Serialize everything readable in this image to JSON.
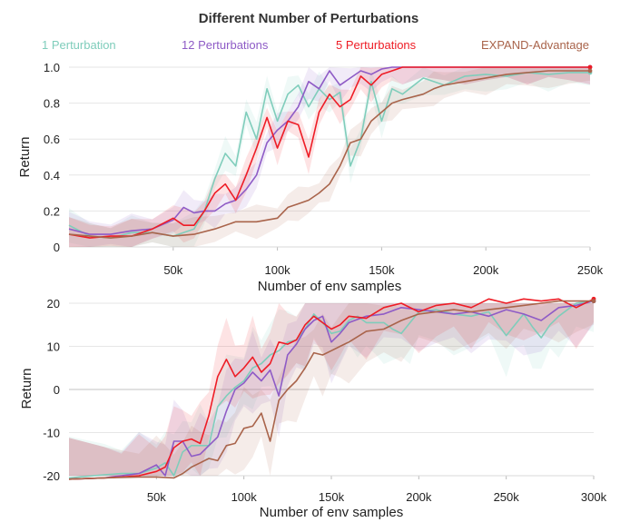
{
  "title": "Different Number of Perturbations",
  "colors": {
    "one": "#7fcdbb",
    "twelve": "#8e5bc6",
    "five": "#ee1c25",
    "expand": "#a9644b"
  },
  "legend": [
    {
      "name": "1 Perturbation",
      "color": "#7fcdbb"
    },
    {
      "name": "12 Perturbations",
      "color": "#8e5bc6"
    },
    {
      "name": "5 Perturbations",
      "color": "#ee1c25"
    },
    {
      "name": "EXPAND-Advantage",
      "color": "#a9644b"
    }
  ],
  "chart_data": [
    {
      "type": "line",
      "xlabel": "Number of env samples",
      "ylabel": "Return",
      "xlim": [
        0,
        250000
      ],
      "ylim": [
        0,
        1.0
      ],
      "xticks": [
        50000,
        100000,
        150000,
        200000,
        250000
      ],
      "xtick_labels": [
        "50k",
        "100k",
        "150k",
        "200k",
        "250k"
      ],
      "yticks": [
        0,
        0.2,
        0.4,
        0.6,
        0.8,
        1.0
      ],
      "ytick_labels": [
        "0",
        "0.2",
        "0.4",
        "0.6",
        "0.8",
        "1.0"
      ],
      "series": [
        {
          "name": "1 Perturbation",
          "key": "one",
          "x": [
            0,
            10000,
            20000,
            30000,
            40000,
            50000,
            60000,
            65000,
            70000,
            75000,
            80000,
            85000,
            90000,
            95000,
            100000,
            105000,
            110000,
            115000,
            120000,
            125000,
            130000,
            135000,
            140000,
            145000,
            150000,
            155000,
            160000,
            170000,
            180000,
            190000,
            200000,
            210000,
            220000,
            230000,
            240000,
            250000
          ],
          "y": [
            0.12,
            0.06,
            0.05,
            0.08,
            0.08,
            0.06,
            0.1,
            0.2,
            0.38,
            0.52,
            0.45,
            0.75,
            0.6,
            0.88,
            0.7,
            0.85,
            0.9,
            0.78,
            0.88,
            0.82,
            0.86,
            0.45,
            0.6,
            0.92,
            0.7,
            0.88,
            0.85,
            0.94,
            0.9,
            0.95,
            0.96,
            0.95,
            0.97,
            0.96,
            0.97,
            0.97
          ]
        },
        {
          "name": "12 Perturbations",
          "key": "twelve",
          "x": [
            0,
            10000,
            20000,
            30000,
            40000,
            50000,
            55000,
            60000,
            65000,
            70000,
            75000,
            80000,
            85000,
            90000,
            95000,
            100000,
            105000,
            110000,
            115000,
            120000,
            125000,
            130000,
            135000,
            140000,
            145000,
            150000,
            155000,
            160000,
            170000,
            180000,
            190000,
            200000,
            210000,
            220000,
            230000,
            240000,
            250000
          ],
          "y": [
            0.1,
            0.07,
            0.07,
            0.09,
            0.1,
            0.15,
            0.22,
            0.19,
            0.2,
            0.2,
            0.24,
            0.26,
            0.32,
            0.4,
            0.58,
            0.65,
            0.7,
            0.78,
            0.92,
            0.88,
            0.98,
            0.9,
            0.94,
            0.98,
            0.96,
            0.99,
            1.0,
            1.0,
            1.0,
            1.0,
            1.0,
            1.0,
            1.0,
            1.0,
            1.0,
            1.0,
            1.0
          ]
        },
        {
          "name": "5 Perturbations",
          "key": "five",
          "x": [
            0,
            10000,
            20000,
            30000,
            40000,
            50000,
            55000,
            60000,
            65000,
            70000,
            75000,
            80000,
            85000,
            90000,
            95000,
            100000,
            105000,
            110000,
            115000,
            120000,
            125000,
            130000,
            135000,
            140000,
            145000,
            150000,
            155000,
            160000,
            170000,
            180000,
            190000,
            200000,
            210000,
            220000,
            230000,
            240000,
            250000
          ],
          "y": [
            0.07,
            0.05,
            0.06,
            0.06,
            0.1,
            0.16,
            0.12,
            0.12,
            0.2,
            0.3,
            0.35,
            0.26,
            0.4,
            0.55,
            0.72,
            0.55,
            0.7,
            0.68,
            0.5,
            0.75,
            0.85,
            0.78,
            0.82,
            0.95,
            0.9,
            0.96,
            0.98,
            1.0,
            1.0,
            1.0,
            1.0,
            1.0,
            1.0,
            1.0,
            1.0,
            1.0,
            1.0
          ]
        },
        {
          "name": "EXPAND-Advantage",
          "key": "expand",
          "x": [
            0,
            10000,
            20000,
            30000,
            40000,
            50000,
            60000,
            70000,
            80000,
            90000,
            100000,
            105000,
            110000,
            115000,
            120000,
            125000,
            130000,
            135000,
            140000,
            145000,
            150000,
            155000,
            160000,
            170000,
            175000,
            180000,
            190000,
            200000,
            210000,
            220000,
            230000,
            240000,
            250000
          ],
          "y": [
            0.07,
            0.06,
            0.05,
            0.06,
            0.08,
            0.06,
            0.07,
            0.1,
            0.14,
            0.14,
            0.16,
            0.22,
            0.24,
            0.26,
            0.3,
            0.35,
            0.45,
            0.58,
            0.6,
            0.7,
            0.75,
            0.8,
            0.82,
            0.85,
            0.88,
            0.9,
            0.92,
            0.94,
            0.96,
            0.97,
            0.98,
            0.98,
            0.98
          ]
        }
      ]
    },
    {
      "type": "line",
      "xlabel": "Number of env samples",
      "ylabel": "Return",
      "xlim": [
        0,
        300000
      ],
      "ylim": [
        -20,
        20
      ],
      "xticks": [
        50000,
        100000,
        150000,
        200000,
        250000,
        300000
      ],
      "xtick_labels": [
        "50k",
        "100k",
        "150k",
        "200k",
        "250k",
        "300k"
      ],
      "yticks": [
        -20,
        -10,
        0,
        10,
        20
      ],
      "ytick_labels": [
        "-20",
        "-10",
        "0",
        "10",
        "20"
      ],
      "series": [
        {
          "name": "1 Perturbation",
          "key": "one",
          "x": [
            0,
            20000,
            30000,
            40000,
            50000,
            55000,
            60000,
            65000,
            70000,
            75000,
            80000,
            85000,
            90000,
            95000,
            100000,
            105000,
            110000,
            115000,
            120000,
            125000,
            130000,
            135000,
            140000,
            145000,
            150000,
            155000,
            160000,
            165000,
            170000,
            175000,
            180000,
            185000,
            190000,
            195000,
            200000,
            210000,
            220000,
            230000,
            240000,
            250000,
            255000,
            260000,
            265000,
            270000,
            275000,
            280000,
            290000,
            300000
          ],
          "y": [
            -20.5,
            -19.8,
            -19.5,
            -19.5,
            -18.2,
            -17.0,
            -20.0,
            -14.5,
            -13.0,
            -13.0,
            -13.0,
            -4.0,
            -1.5,
            0.5,
            2.0,
            5.0,
            6.0,
            8.0,
            9.0,
            11.0,
            11.5,
            14.0,
            17.5,
            15.5,
            13.0,
            13.5,
            16.0,
            17.0,
            15.5,
            15.5,
            15.5,
            14.0,
            13.0,
            15.5,
            18.0,
            18.5,
            17.5,
            17.0,
            18.0,
            12.5,
            15.0,
            17.5,
            14.5,
            12.0,
            15.0,
            17.0,
            20.0,
            20.5
          ]
        },
        {
          "name": "12 Perturbations",
          "key": "twelve",
          "x": [
            0,
            20000,
            30000,
            40000,
            50000,
            55000,
            60000,
            65000,
            70000,
            75000,
            80000,
            85000,
            90000,
            95000,
            100000,
            105000,
            110000,
            115000,
            120000,
            125000,
            130000,
            135000,
            140000,
            145000,
            150000,
            155000,
            160000,
            170000,
            180000,
            190000,
            200000,
            210000,
            220000,
            230000,
            240000,
            250000,
            260000,
            270000,
            280000,
            290000,
            300000
          ],
          "y": [
            -20.8,
            -20.5,
            -20.0,
            -19.5,
            -17.5,
            -20.0,
            -12.0,
            -12.0,
            -15.5,
            -15.0,
            -13.0,
            -11.0,
            -5.0,
            0.0,
            1.5,
            4.0,
            2.0,
            4.5,
            -1.5,
            8.0,
            10.5,
            14.0,
            16.0,
            17.0,
            11.0,
            13.0,
            15.5,
            17.0,
            17.5,
            19.0,
            18.5,
            18.0,
            17.5,
            18.0,
            17.0,
            18.5,
            17.5,
            16.0,
            19.0,
            19.5,
            20.5
          ]
        },
        {
          "name": "5 Perturbations",
          "key": "five",
          "x": [
            0,
            20000,
            30000,
            40000,
            50000,
            55000,
            60000,
            65000,
            70000,
            75000,
            80000,
            85000,
            90000,
            95000,
            100000,
            105000,
            110000,
            115000,
            120000,
            125000,
            130000,
            135000,
            140000,
            145000,
            150000,
            155000,
            160000,
            170000,
            180000,
            190000,
            200000,
            210000,
            220000,
            230000,
            240000,
            250000,
            260000,
            270000,
            280000,
            290000,
            300000
          ],
          "y": [
            -20.8,
            -20.5,
            -20.3,
            -20.0,
            -19.0,
            -18.0,
            -13.5,
            -12.0,
            -11.5,
            -12.5,
            -6.0,
            3.0,
            7.0,
            3.0,
            5.0,
            7.5,
            4.0,
            6.0,
            11.0,
            10.5,
            11.5,
            15.0,
            17.0,
            15.5,
            14.0,
            15.0,
            17.0,
            16.5,
            19.0,
            20.0,
            18.0,
            19.5,
            20.0,
            19.0,
            21.0,
            20.0,
            21.0,
            20.5,
            21.0,
            19.0,
            21.0
          ]
        },
        {
          "name": "EXPAND-Advantage",
          "key": "expand",
          "x": [
            0,
            20000,
            40000,
            50000,
            60000,
            65000,
            70000,
            75000,
            80000,
            85000,
            90000,
            95000,
            100000,
            105000,
            110000,
            115000,
            120000,
            125000,
            130000,
            135000,
            140000,
            145000,
            150000,
            155000,
            160000,
            170000,
            180000,
            190000,
            200000,
            210000,
            220000,
            230000,
            240000,
            250000,
            260000,
            270000,
            280000,
            290000,
            300000
          ],
          "y": [
            -20.8,
            -20.5,
            -20.3,
            -20.3,
            -20.5,
            -19.5,
            -18.0,
            -17.0,
            -16.0,
            -16.5,
            -13.0,
            -12.5,
            -9.0,
            -8.5,
            -5.5,
            -12.0,
            -2.5,
            0.0,
            2.0,
            5.0,
            8.5,
            8.0,
            9.0,
            10.0,
            11.0,
            13.5,
            14.0,
            16.0,
            17.5,
            18.0,
            18.5,
            18.0,
            18.5,
            19.0,
            19.5,
            20.0,
            20.5,
            20.5,
            20.5
          ]
        }
      ]
    }
  ]
}
